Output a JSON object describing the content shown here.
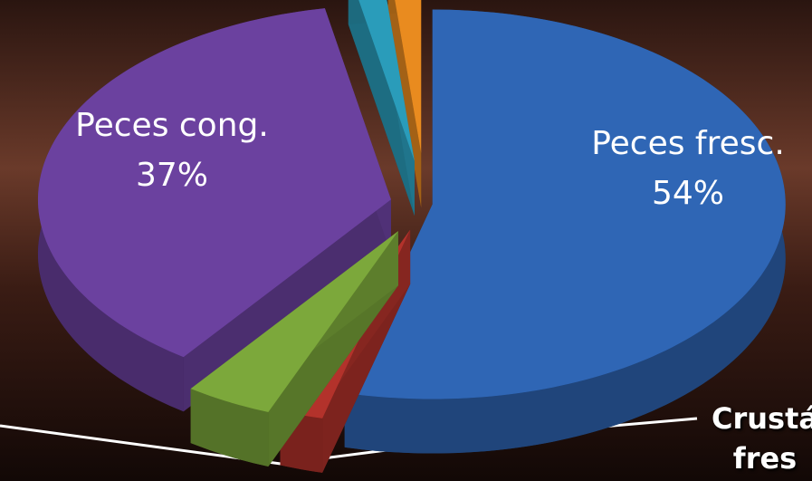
{
  "chart_data": {
    "type": "pie",
    "categories": [
      "Peces fresc.",
      "Crustá fres",
      null,
      "Peces cong.",
      null,
      null
    ],
    "values": [
      54,
      2,
      4,
      37,
      1.5,
      1.5
    ],
    "value_labels": [
      "54%",
      null,
      null,
      "37%",
      null,
      null
    ],
    "colors": [
      "#2f66b5",
      "#b3322b",
      "#7ca83b",
      "#6b419f",
      "#2a9cba",
      "#e98b1f"
    ],
    "three_d": true
  }
}
